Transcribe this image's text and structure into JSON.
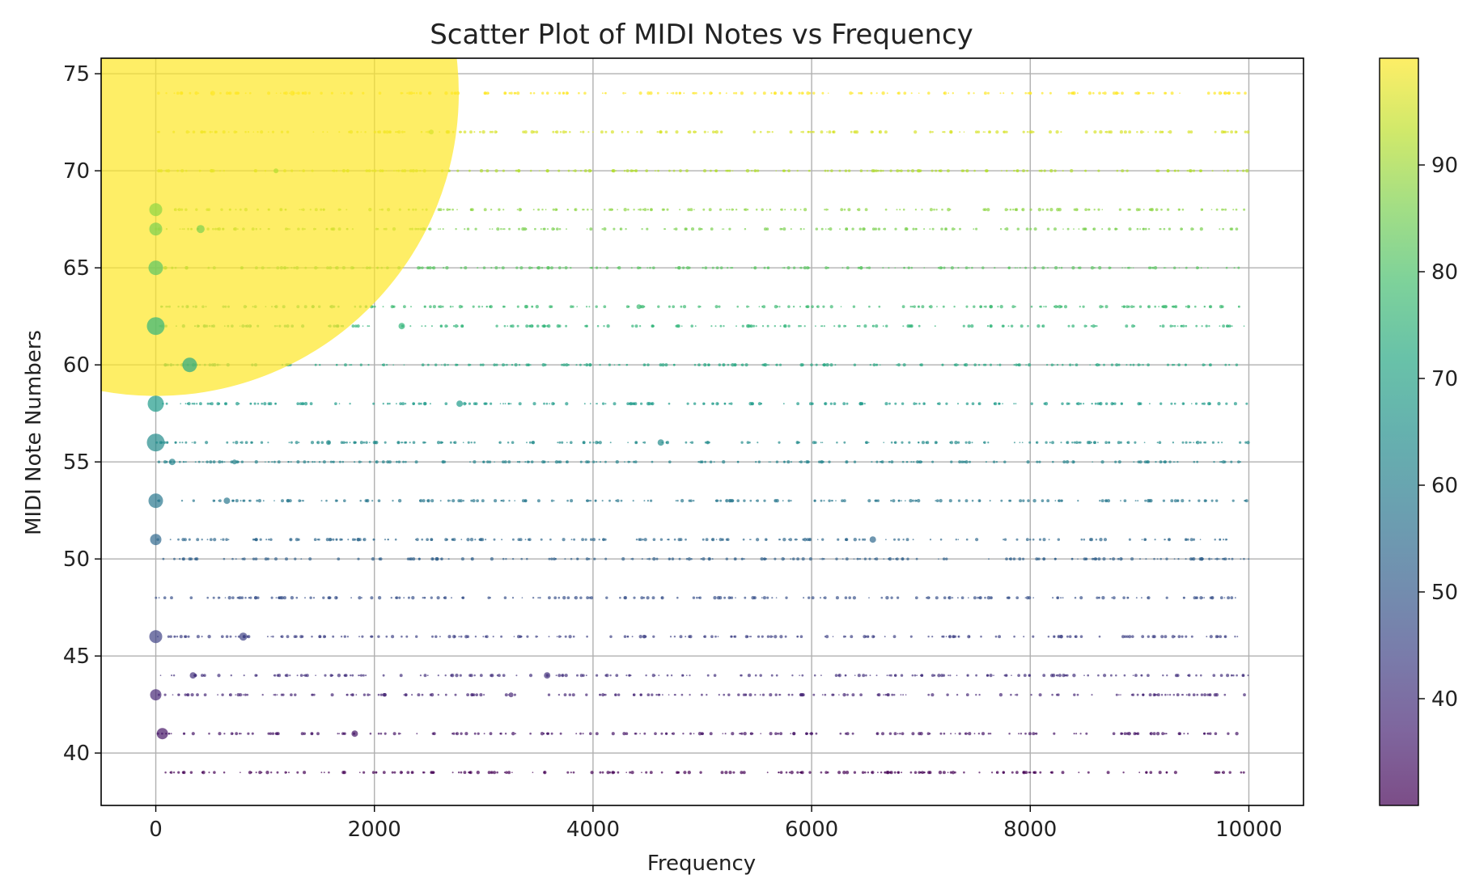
{
  "chart_data": {
    "type": "scatter",
    "title": "Scatter Plot of MIDI Notes vs Frequency",
    "xlabel": "Frequency",
    "ylabel": "MIDI Note Numbers",
    "xlim": [
      -500,
      10500
    ],
    "ylim": [
      37.3,
      75.8
    ],
    "xticks": [
      0,
      2000,
      4000,
      6000,
      8000,
      10000
    ],
    "yticks": [
      40,
      45,
      50,
      55,
      60,
      65,
      70,
      75
    ],
    "grid": true,
    "colormap": "viridis",
    "point_alpha": 0.7,
    "colorbar": {
      "range": [
        30,
        100
      ],
      "ticks": [
        40,
        50,
        60,
        70,
        80,
        90
      ],
      "label": ""
    },
    "x_range_of_points": [
      0,
      10000
    ],
    "notes": [
      {
        "y": 39,
        "color_value": 30
      },
      {
        "y": 41,
        "color_value": 34
      },
      {
        "y": 43,
        "color_value": 38
      },
      {
        "y": 44,
        "color_value": 40
      },
      {
        "y": 46,
        "color_value": 44
      },
      {
        "y": 48,
        "color_value": 48
      },
      {
        "y": 50,
        "color_value": 52
      },
      {
        "y": 51,
        "color_value": 54
      },
      {
        "y": 53,
        "color_value": 58
      },
      {
        "y": 55,
        "color_value": 62
      },
      {
        "y": 56,
        "color_value": 64
      },
      {
        "y": 58,
        "color_value": 68
      },
      {
        "y": 60,
        "color_value": 72
      },
      {
        "y": 62,
        "color_value": 76
      },
      {
        "y": 63,
        "color_value": 78
      },
      {
        "y": 65,
        "color_value": 82
      },
      {
        "y": 67,
        "color_value": 86
      },
      {
        "y": 68,
        "color_value": 88
      },
      {
        "y": 70,
        "color_value": 92
      },
      {
        "y": 72,
        "color_value": 96
      },
      {
        "y": 74,
        "color_value": 100
      }
    ],
    "highlighted_points": [
      {
        "x": 0,
        "y": 74,
        "color_value": 100,
        "size": 9000
      },
      {
        "x": 0,
        "y": 62,
        "color_value": 76,
        "size": 11
      },
      {
        "x": 0,
        "y": 56,
        "color_value": 64,
        "size": 11
      },
      {
        "x": 0,
        "y": 58,
        "color_value": 68,
        "size": 10
      },
      {
        "x": 0,
        "y": 53,
        "color_value": 58,
        "size": 9
      },
      {
        "x": 0,
        "y": 65,
        "color_value": 82,
        "size": 9
      },
      {
        "x": 0,
        "y": 67,
        "color_value": 86,
        "size": 8
      },
      {
        "x": 0,
        "y": 68,
        "color_value": 88,
        "size": 8
      },
      {
        "x": 0,
        "y": 46,
        "color_value": 44,
        "size": 8
      },
      {
        "x": 0,
        "y": 43,
        "color_value": 38,
        "size": 7
      },
      {
        "x": 0,
        "y": 51,
        "color_value": 54,
        "size": 7
      },
      {
        "x": 60,
        "y": 41,
        "color_value": 34,
        "size": 7
      },
      {
        "x": 310,
        "y": 60,
        "color_value": 72,
        "size": 9
      },
      {
        "x": 410,
        "y": 67,
        "color_value": 86,
        "size": 5
      },
      {
        "x": 800,
        "y": 46,
        "color_value": 44,
        "size": 5
      },
      {
        "x": 340,
        "y": 44,
        "color_value": 40,
        "size": 4
      },
      {
        "x": 1820,
        "y": 41,
        "color_value": 34,
        "size": 4
      },
      {
        "x": 3580,
        "y": 44,
        "color_value": 40,
        "size": 4
      },
      {
        "x": 4620,
        "y": 56,
        "color_value": 64,
        "size": 4
      },
      {
        "x": 6560,
        "y": 51,
        "color_value": 54,
        "size": 4
      },
      {
        "x": 2250,
        "y": 62,
        "color_value": 76,
        "size": 4
      },
      {
        "x": 2780,
        "y": 58,
        "color_value": 68,
        "size": 4
      },
      {
        "x": 650,
        "y": 53,
        "color_value": 58,
        "size": 4
      },
      {
        "x": 150,
        "y": 55,
        "color_value": 62,
        "size": 4
      },
      {
        "x": 4420,
        "y": 63,
        "color_value": 78,
        "size": 3
      },
      {
        "x": 1580,
        "y": 56,
        "color_value": 64,
        "size": 3
      },
      {
        "x": 3250,
        "y": 43,
        "color_value": 38,
        "size": 3
      },
      {
        "x": 720,
        "y": 55,
        "color_value": 62,
        "size": 3
      },
      {
        "x": 1250,
        "y": 74,
        "color_value": 100,
        "size": 3
      },
      {
        "x": 520,
        "y": 74,
        "color_value": 100,
        "size": 3
      },
      {
        "x": 2520,
        "y": 72,
        "color_value": 96,
        "size": 3
      },
      {
        "x": 1100,
        "y": 70,
        "color_value": 92,
        "size": 3
      }
    ]
  }
}
